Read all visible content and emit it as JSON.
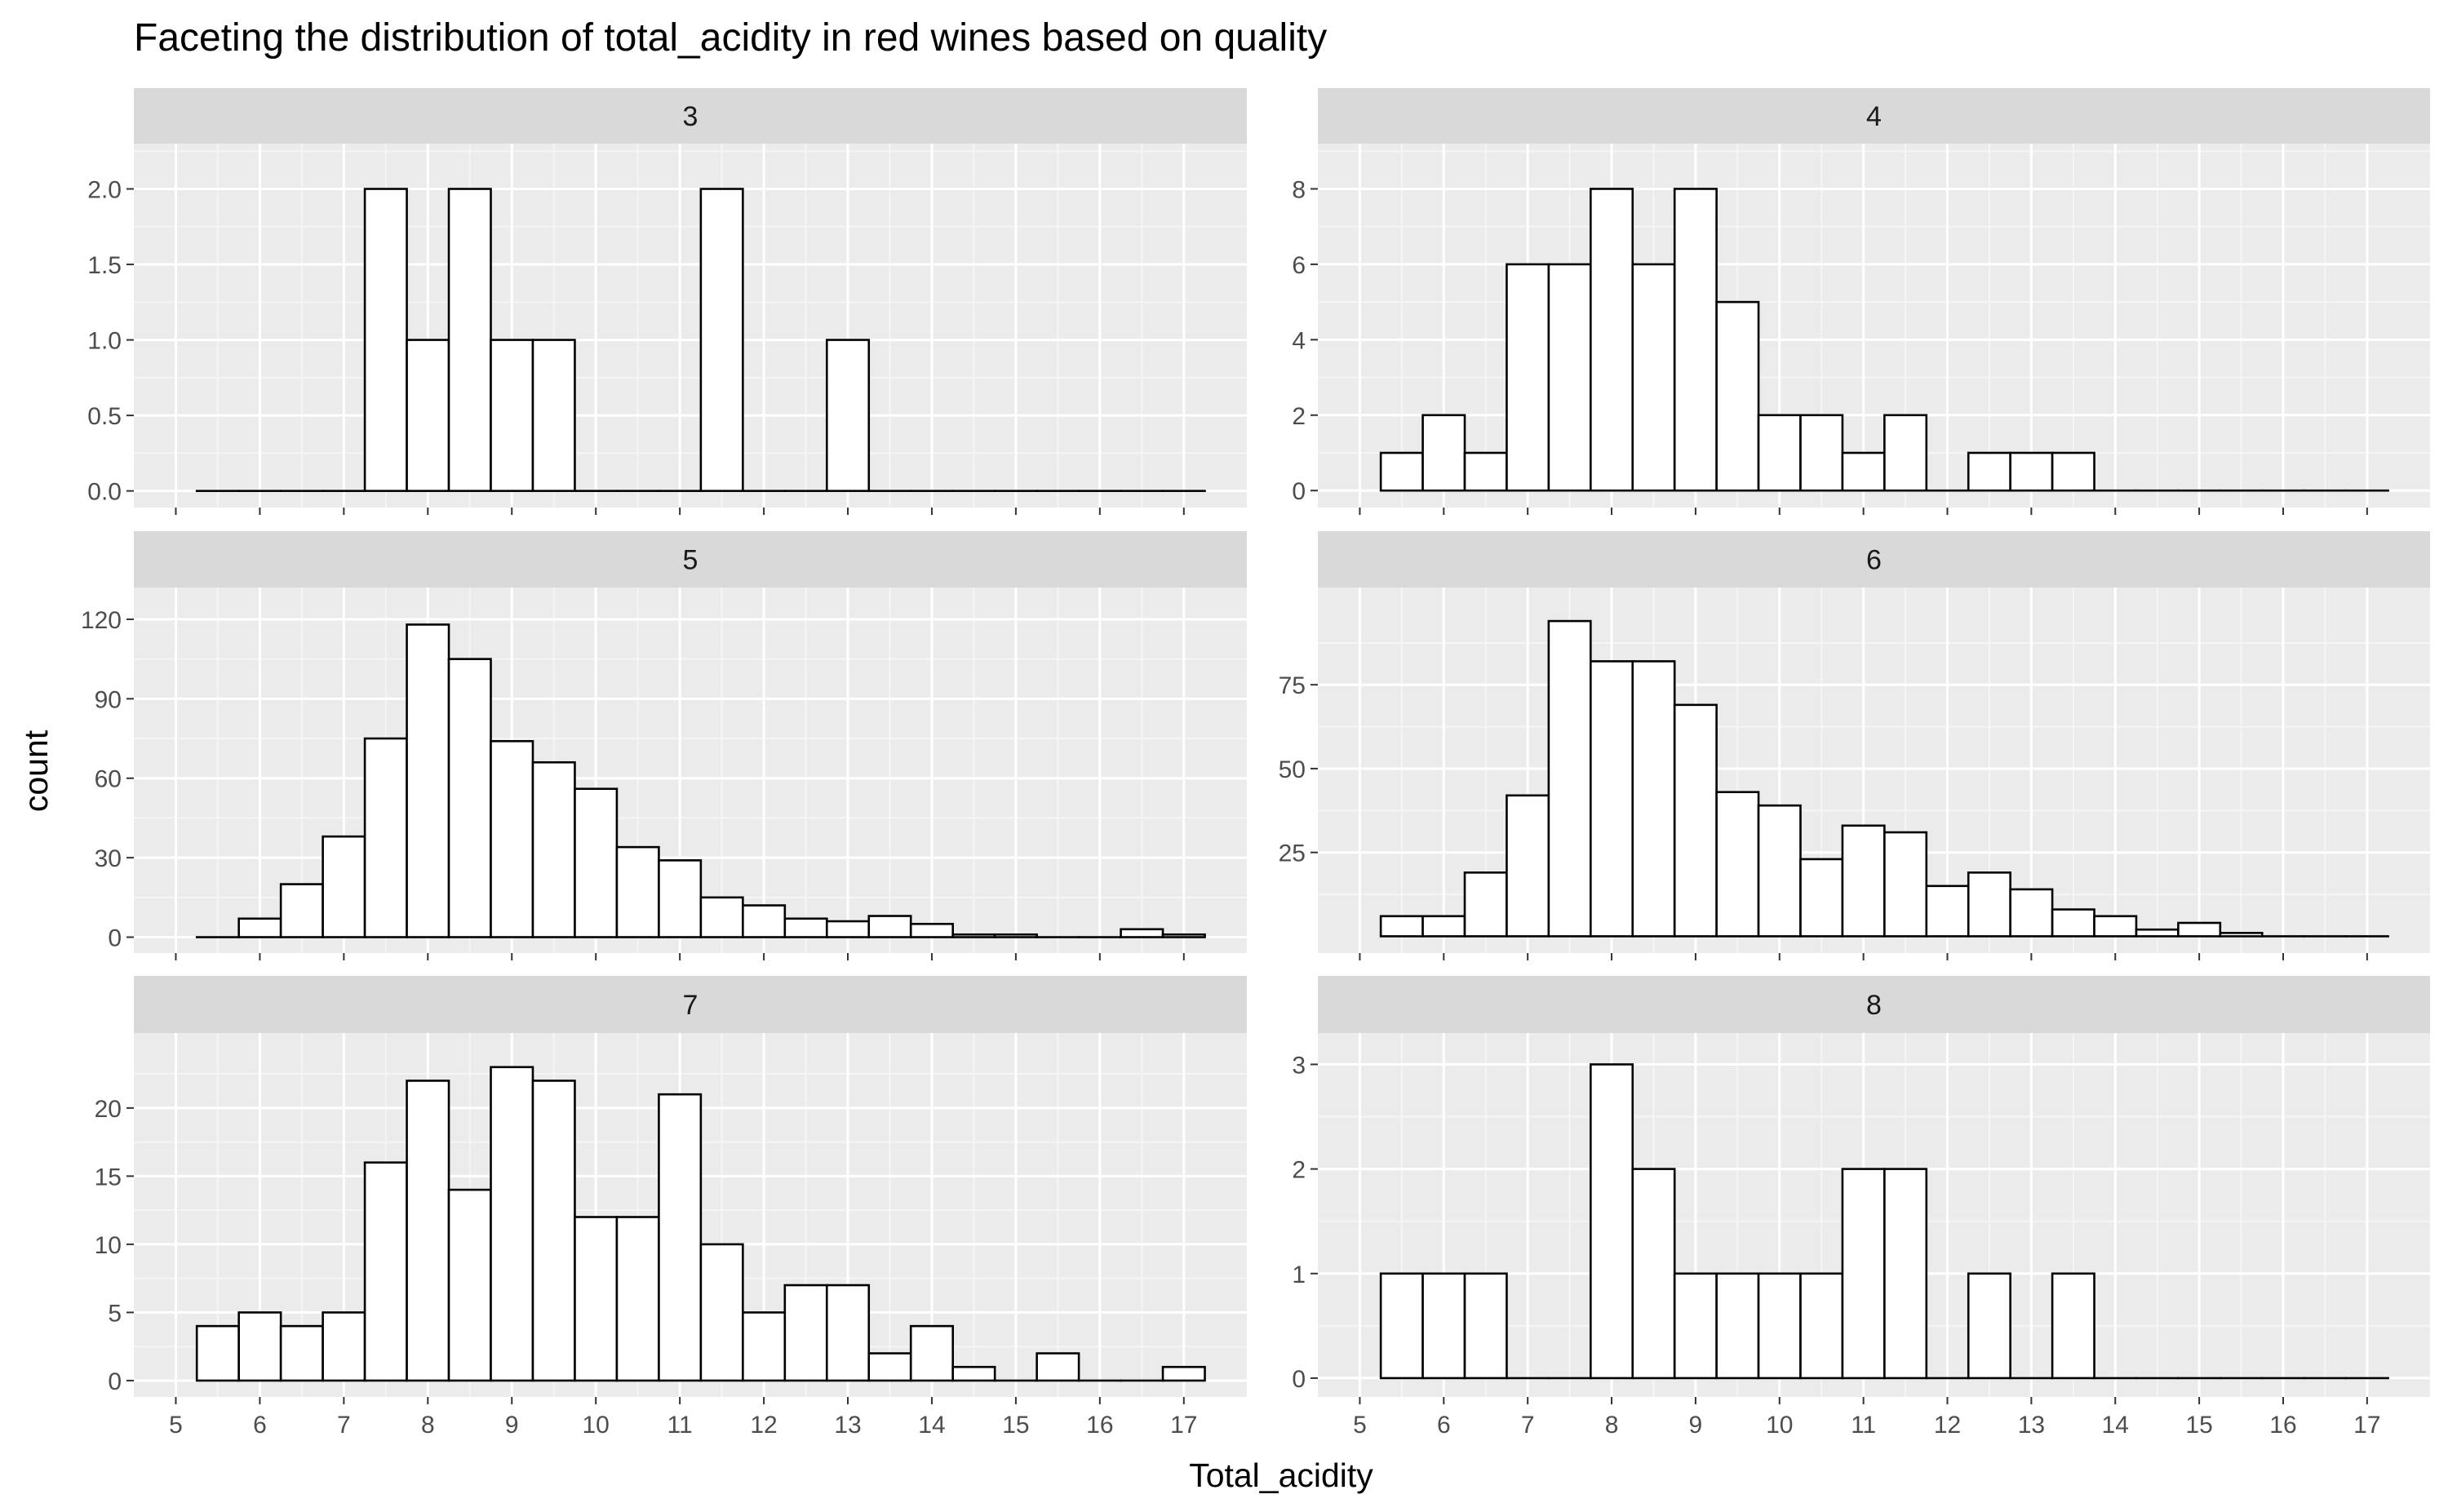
{
  "chart_data": {
    "type": "bar",
    "title": "Faceting the distribution of total_acidity in red wines based on quality",
    "xlabel": "Total_acidity",
    "ylabel": "count",
    "x_ticks": [
      "5",
      "6",
      "7",
      "8",
      "9",
      "10",
      "11",
      "12",
      "13",
      "14",
      "15",
      "16",
      "17"
    ],
    "xlim": [
      4.5,
      17.75
    ],
    "bin_width": 0.5,
    "bin_starts": [
      5.25,
      5.75,
      6.25,
      6.75,
      7.25,
      7.75,
      8.25,
      8.75,
      9.25,
      9.75,
      10.25,
      10.75,
      11.25,
      11.75,
      12.25,
      12.75,
      13.25,
      13.75,
      14.25,
      14.75,
      15.25,
      15.75,
      16.25,
      16.75
    ],
    "grid": true,
    "facets": [
      {
        "label": "3",
        "ylim": [
          -0.11,
          2.3
        ],
        "y_ticks": [
          "0.0",
          "0.5",
          "1.0",
          "1.5",
          "2.0"
        ],
        "y_tick_values": [
          0,
          0.5,
          1.0,
          1.5,
          2.0
        ],
        "values": [
          0,
          0,
          0,
          0,
          2,
          1,
          2,
          1,
          1,
          0,
          0,
          0,
          2,
          0,
          0,
          1,
          0,
          0,
          0,
          0,
          0,
          0,
          0,
          0
        ]
      },
      {
        "label": "4",
        "ylim": [
          -0.45,
          9.2
        ],
        "y_ticks": [
          "0",
          "2",
          "4",
          "6",
          "8"
        ],
        "y_tick_values": [
          0,
          2,
          4,
          6,
          8
        ],
        "values": [
          1,
          2,
          1,
          6,
          6,
          8,
          6,
          8,
          5,
          2,
          2,
          1,
          2,
          0,
          1,
          1,
          1,
          0,
          0,
          0,
          0,
          0,
          0,
          0
        ]
      },
      {
        "label": "5",
        "ylim": [
          -6,
          132
        ],
        "y_ticks": [
          "0",
          "30",
          "60",
          "90",
          "120"
        ],
        "y_tick_values": [
          0,
          30,
          60,
          90,
          120
        ],
        "values": [
          0,
          7,
          20,
          38,
          75,
          118,
          105,
          74,
          66,
          56,
          34,
          29,
          15,
          12,
          7,
          6,
          8,
          5,
          1,
          1,
          0,
          0,
          3,
          1
        ]
      },
      {
        "label": "6",
        "ylim": [
          -5,
          104
        ],
        "y_ticks": [
          "25",
          "50",
          "75"
        ],
        "y_tick_values": [
          25,
          50,
          75
        ],
        "values": [
          6,
          6,
          19,
          42,
          94,
          82,
          82,
          69,
          43,
          39,
          23,
          33,
          31,
          15,
          19,
          14,
          8,
          6,
          2,
          4,
          1,
          0,
          0,
          0
        ]
      },
      {
        "label": "7",
        "ylim": [
          -1.2,
          25.5
        ],
        "y_ticks": [
          "0",
          "5",
          "10",
          "15",
          "20"
        ],
        "y_tick_values": [
          0,
          5,
          10,
          15,
          20
        ],
        "values": [
          4,
          5,
          4,
          5,
          16,
          22,
          14,
          23,
          22,
          12,
          12,
          21,
          10,
          5,
          7,
          7,
          2,
          4,
          1,
          0,
          2,
          0,
          0,
          1
        ]
      },
      {
        "label": "8",
        "ylim": [
          -0.18,
          3.3
        ],
        "y_ticks": [
          "0",
          "1",
          "2",
          "3"
        ],
        "y_tick_values": [
          0,
          1,
          2,
          3
        ],
        "values": [
          1,
          1,
          1,
          0,
          0,
          3,
          2,
          1,
          1,
          1,
          1,
          2,
          2,
          0,
          1,
          0,
          1,
          0,
          0,
          0,
          0,
          0,
          0,
          0
        ]
      }
    ]
  }
}
